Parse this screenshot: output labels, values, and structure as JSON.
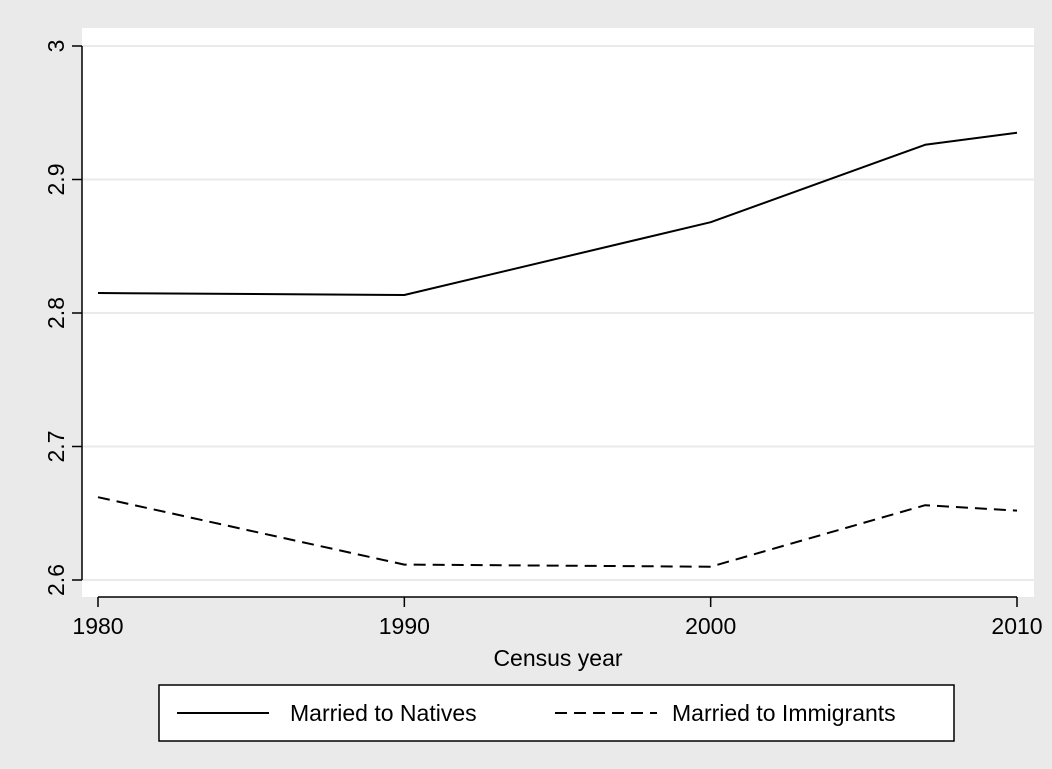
{
  "chart_data": {
    "type": "line",
    "x": [
      1980,
      1990,
      2000,
      2007,
      2010
    ],
    "series": [
      {
        "name": "Married to Natives",
        "values": [
          2.815,
          2.8135,
          2.868,
          2.926,
          2.935
        ],
        "style": "solid",
        "color": "#000000"
      },
      {
        "name": "Married to Immigrants",
        "values": [
          2.662,
          2.6115,
          2.61,
          2.656,
          2.652
        ],
        "style": "dashed",
        "color": "#000000"
      }
    ],
    "title": "",
    "xlabel": "Census year",
    "ylabel": "",
    "xlim": [
      1980,
      2010
    ],
    "ylim": [
      2.6,
      3.0
    ],
    "xticks": [
      {
        "value": 1980,
        "label": "1980"
      },
      {
        "value": 1990,
        "label": "1990"
      },
      {
        "value": 2000,
        "label": "2000"
      },
      {
        "value": 2010,
        "label": "2010"
      }
    ],
    "yticks": [
      {
        "value": 2.6,
        "label": "2.6"
      },
      {
        "value": 2.7,
        "label": "2.7"
      },
      {
        "value": 2.8,
        "label": "2.8"
      },
      {
        "value": 2.9,
        "label": "2.9"
      },
      {
        "value": 3.0,
        "label": "3"
      }
    ],
    "grid": true,
    "legend_position": "bottom"
  },
  "colors": {
    "page_background": "#eaeaea",
    "plot_background": "#ffffff",
    "gridline": "#eaeaea"
  }
}
